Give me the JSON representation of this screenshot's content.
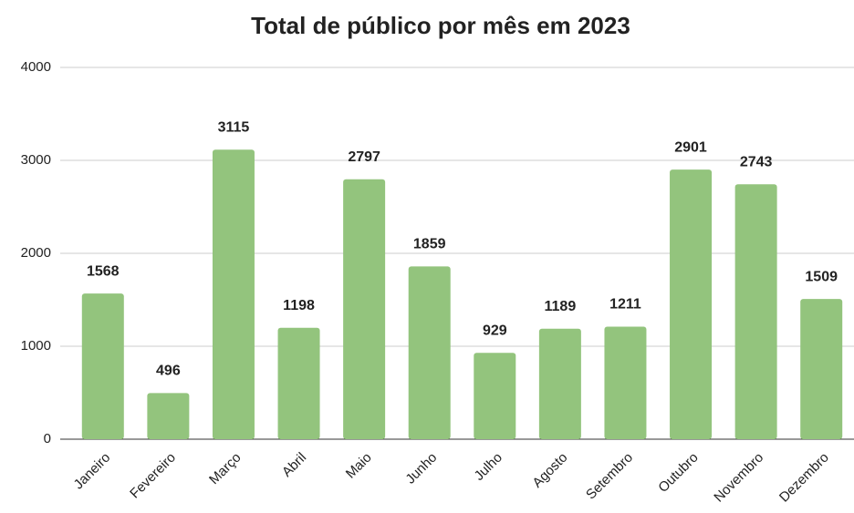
{
  "chart_data": {
    "type": "bar",
    "title": "Total de público por mês em 2023",
    "categories": [
      "Janeiro",
      "Fevereiro",
      "Março",
      "Abril",
      "Maio",
      "Junho",
      "Julho",
      "Agosto",
      "Setembro",
      "Outubro",
      "Novembro",
      "Dezembro"
    ],
    "values": [
      1568,
      496,
      3115,
      1198,
      2797,
      1859,
      929,
      1189,
      1211,
      2901,
      2743,
      1509
    ],
    "color": "#93c47d",
    "ylim": [
      0,
      4000
    ],
    "yticks": [
      0,
      1000,
      2000,
      3000,
      4000
    ],
    "grid": true
  }
}
